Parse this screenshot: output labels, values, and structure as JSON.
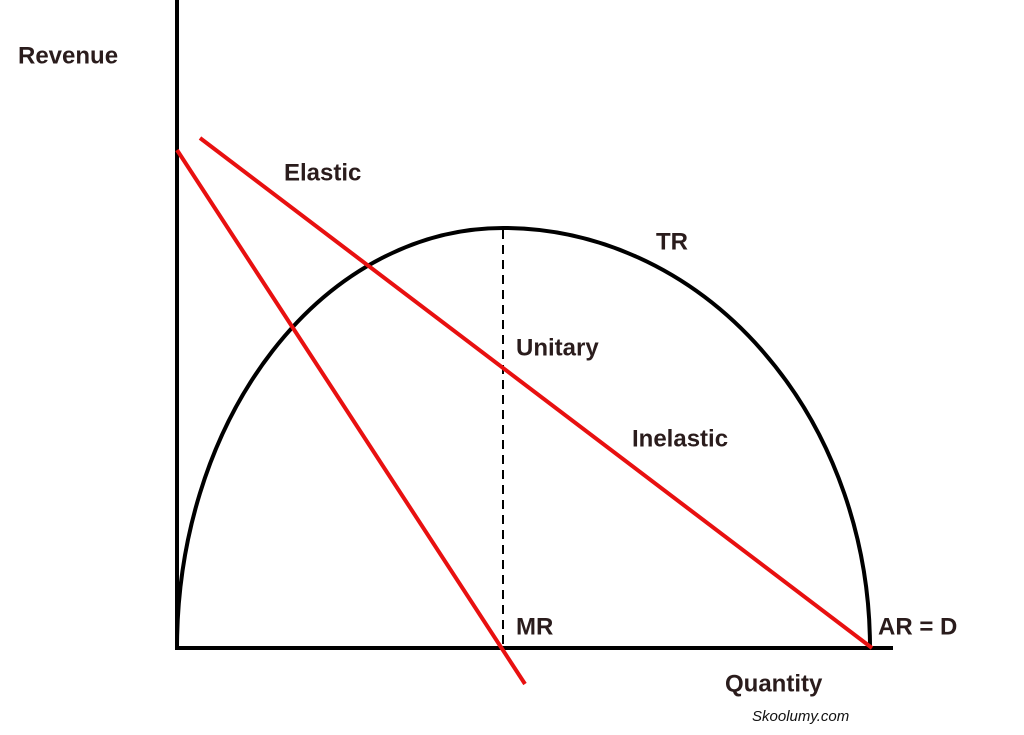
{
  "axes": {
    "y_label": "Revenue",
    "x_label": "Quantity"
  },
  "labels": {
    "elastic": "Elastic",
    "tr": "TR",
    "unitary": "Unitary",
    "inelastic": "Inelastic",
    "mr": "MR",
    "ar": "AR = D"
  },
  "credit": "Skoolumy.com"
}
